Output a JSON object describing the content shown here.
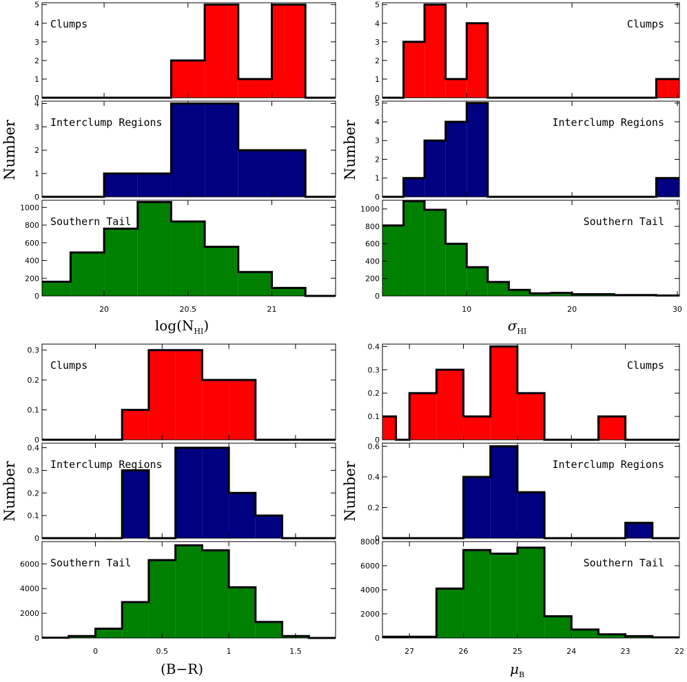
{
  "chart_data": [
    {
      "id": "nhi",
      "type": "bar",
      "xlabel": "log(N",
      "xlabel_sub": "HI",
      "xlabel_close": ")",
      "ylabel": "Number",
      "xlim": [
        19.63,
        21.38
      ],
      "xticks": [
        20,
        20.5,
        21
      ],
      "xtick_labels": [
        "20",
        "20.5",
        "21"
      ],
      "panels": [
        {
          "label": "Clumps",
          "label_pos": "left",
          "color": "#ff0000",
          "ylim": [
            0,
            5.1
          ],
          "yticks": [
            0,
            1,
            2,
            3,
            4,
            5
          ],
          "ytick_labels": [
            "0",
            "1",
            "2",
            "3",
            "4",
            "5"
          ],
          "edges": [
            19.63,
            19.8,
            20.0,
            20.2,
            20.4,
            20.6,
            20.8,
            21.0,
            21.2,
            21.38
          ],
          "values": [
            0,
            0,
            0,
            0,
            2,
            5,
            1,
            5,
            0
          ]
        },
        {
          "label": "Interclump Regions",
          "label_pos": "left",
          "color": "#000080",
          "ylim": [
            0,
            4.1
          ],
          "yticks": [
            0,
            1,
            2,
            3,
            4
          ],
          "ytick_labels": [
            "0",
            "1",
            "2",
            "3",
            "4"
          ],
          "edges": [
            19.63,
            19.8,
            20.0,
            20.2,
            20.4,
            20.6,
            20.8,
            21.0,
            21.2,
            21.38
          ],
          "values": [
            0,
            0,
            1,
            1,
            4,
            4,
            2,
            2,
            0
          ]
        },
        {
          "label": "Southern Tail",
          "label_pos": "left",
          "color": "#008000",
          "ylim": [
            0,
            1080
          ],
          "yticks": [
            0,
            200,
            400,
            600,
            800,
            1000
          ],
          "ytick_labels": [
            "0",
            "200",
            "400",
            "600",
            "800",
            "1000"
          ],
          "edges": [
            19.63,
            19.8,
            20.0,
            20.2,
            20.4,
            20.6,
            20.8,
            21.0,
            21.2,
            21.38
          ],
          "values": [
            160,
            490,
            760,
            1060,
            840,
            555,
            270,
            90,
            0
          ]
        }
      ]
    },
    {
      "id": "sigma",
      "type": "bar",
      "xlabel": "σ",
      "xlabel_sub": "HI",
      "xlabel_close": "",
      "ylabel": "Number",
      "xlim": [
        2,
        30.2
      ],
      "xticks": [
        10,
        20,
        30
      ],
      "xtick_labels": [
        "10",
        "20",
        "30"
      ],
      "panels": [
        {
          "label": "Clumps",
          "label_pos": "right",
          "color": "#ff0000",
          "ylim": [
            0,
            5.1
          ],
          "yticks": [
            0,
            1,
            2,
            3,
            4,
            5
          ],
          "ytick_labels": [
            "0",
            "1",
            "2",
            "3",
            "4",
            "5"
          ],
          "edges": [
            2,
            4,
            6,
            8,
            10,
            12,
            28,
            30.2
          ],
          "values": [
            0,
            3,
            5,
            1,
            4,
            0,
            1
          ]
        },
        {
          "label": "Interclump Regions",
          "label_pos": "right",
          "color": "#000080",
          "ylim": [
            0,
            5.1
          ],
          "yticks": [
            0,
            1,
            2,
            3,
            4,
            5
          ],
          "ytick_labels": [
            "0",
            "1",
            "2",
            "3",
            "4",
            "5"
          ],
          "edges": [
            2,
            4,
            6,
            8,
            10,
            12,
            28,
            30.2
          ],
          "values": [
            0,
            1,
            3,
            4,
            5,
            0,
            1
          ]
        },
        {
          "label": "Southern Tail",
          "label_pos": "right",
          "color": "#008000",
          "ylim": [
            0,
            1100
          ],
          "yticks": [
            0,
            200,
            400,
            600,
            800,
            1000
          ],
          "ytick_labels": [
            "0",
            "200",
            "400",
            "600",
            "800",
            "1000"
          ],
          "edges": [
            2,
            4,
            6,
            8,
            10,
            12,
            14,
            16,
            18,
            20,
            24,
            28,
            30.2
          ],
          "values": [
            810,
            1090,
            990,
            600,
            330,
            160,
            70,
            30,
            35,
            20,
            10,
            5
          ]
        }
      ]
    },
    {
      "id": "br",
      "type": "bar",
      "xlabel": "(B−R)",
      "xlabel_sub": "",
      "xlabel_close": "",
      "ylabel": "Number",
      "xlim": [
        -0.4,
        1.8
      ],
      "xticks": [
        0,
        0.5,
        1,
        1.5
      ],
      "xtick_labels": [
        "0",
        "0.5",
        "1",
        "1.5"
      ],
      "panels": [
        {
          "label": "Clumps",
          "label_pos": "left",
          "color": "#ff0000",
          "ylim": [
            0,
            0.32
          ],
          "yticks": [
            0,
            0.1,
            0.2,
            0.3
          ],
          "ytick_labels": [
            "0",
            "0.1",
            "0.2",
            "0.3"
          ],
          "edges": [
            -0.4,
            -0.2,
            0.0,
            0.2,
            0.4,
            0.6,
            0.8,
            1.0,
            1.2,
            1.4,
            1.6,
            1.8
          ],
          "values": [
            0,
            0,
            0,
            0.1,
            0.3,
            0.3,
            0.2,
            0.2,
            0,
            0,
            0
          ]
        },
        {
          "label": "Interclump Regions",
          "label_pos": "left",
          "color": "#000080",
          "ylim": [
            0,
            0.42
          ],
          "yticks": [
            0,
            0.1,
            0.2,
            0.3,
            0.4
          ],
          "ytick_labels": [
            "0",
            "0.1",
            "0.2",
            "0.3",
            "0.4"
          ],
          "edges": [
            -0.4,
            -0.2,
            0.0,
            0.2,
            0.4,
            0.6,
            0.8,
            1.0,
            1.2,
            1.4,
            1.6,
            1.8
          ],
          "values": [
            0,
            0,
            0,
            0.3,
            0,
            0.4,
            0.4,
            0.2,
            0.1,
            0,
            0
          ]
        },
        {
          "label": "Southern Tail",
          "label_pos": "left",
          "color": "#008000",
          "ylim": [
            0,
            7800
          ],
          "yticks": [
            0,
            2000,
            4000,
            6000
          ],
          "ytick_labels": [
            "0",
            "2000",
            "4000",
            "6000"
          ],
          "edges": [
            -0.4,
            -0.2,
            0.0,
            0.2,
            0.4,
            0.6,
            0.8,
            1.0,
            1.2,
            1.4,
            1.6,
            1.8
          ],
          "values": [
            20,
            150,
            750,
            2900,
            6300,
            7500,
            7100,
            4100,
            1300,
            150,
            0
          ]
        }
      ]
    },
    {
      "id": "mub",
      "type": "bar",
      "xlabel": "μ",
      "xlabel_sub": "B",
      "xlabel_close": "",
      "ylabel": "Number",
      "reversed": true,
      "xlim": [
        27.5,
        22.0
      ],
      "xticks": [
        27,
        26,
        25,
        24,
        23,
        22
      ],
      "xtick_labels": [
        "27",
        "26",
        "25",
        "24",
        "23",
        "22"
      ],
      "panels": [
        {
          "label": "Clumps",
          "label_pos": "right",
          "color": "#ff0000",
          "ylim": [
            0,
            0.41
          ],
          "yticks": [
            0,
            0.1,
            0.2,
            0.3,
            0.4
          ],
          "ytick_labels": [
            "0",
            "0.1",
            "0.2",
            "0.3",
            "0.4"
          ],
          "edges": [
            27.5,
            27.25,
            27.0,
            26.5,
            26.0,
            25.5,
            25.0,
            24.5,
            24.0,
            23.5,
            23.0,
            22.5,
            22.0
          ],
          "values": [
            0.1,
            0,
            0.2,
            0.3,
            0.1,
            0.4,
            0.2,
            0,
            0,
            0.1,
            0,
            0
          ]
        },
        {
          "label": "Interclump Regions",
          "label_pos": "right",
          "color": "#000080",
          "ylim": [
            0,
            0.62
          ],
          "yticks": [
            0,
            0.2,
            0.4,
            0.6
          ],
          "ytick_labels": [
            "0",
            "0.2",
            "0.4",
            "0.6"
          ],
          "edges": [
            27.5,
            27.0,
            26.5,
            26.0,
            25.5,
            25.0,
            24.5,
            24.0,
            23.5,
            23.0,
            22.5,
            22.0
          ],
          "values": [
            0,
            0,
            0,
            0.4,
            0.6,
            0.3,
            0,
            0,
            0,
            0.1,
            0
          ]
        },
        {
          "label": "Southern Tail",
          "label_pos": "right",
          "color": "#008000",
          "ylim": [
            0,
            8000
          ],
          "yticks": [
            0,
            2000,
            4000,
            6000,
            8000
          ],
          "ytick_labels": [
            "0",
            "2000",
            "4000",
            "6000",
            "8000"
          ],
          "edges": [
            27.5,
            27.0,
            26.5,
            26.0,
            25.5,
            25.0,
            24.5,
            24.0,
            23.5,
            23.0,
            22.5,
            22.0
          ],
          "values": [
            100,
            100,
            4100,
            7300,
            7000,
            7500,
            1800,
            700,
            300,
            150,
            50
          ]
        }
      ]
    }
  ]
}
